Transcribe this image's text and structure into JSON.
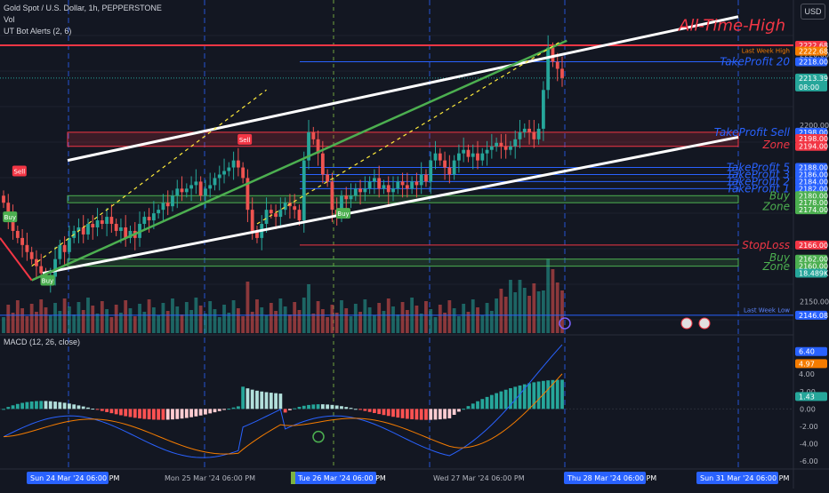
{
  "header": {
    "symbol_line": "Gold Spot / U.S. Dollar, 1h, PEPPERSTONE",
    "vol_label": "Vol",
    "ut_label": "UT Bot Alerts (2, 6)",
    "macd_label": "MACD (12, 26, close)",
    "currency_button": "USD"
  },
  "colors": {
    "bg": "#131722",
    "up": "#26a69a",
    "down": "#ef5350",
    "grid": "#1e222d",
    "blue_line": "#2962ff",
    "red_line": "#f23645",
    "green_zone": "#4caf50",
    "white": "#ffffff"
  },
  "price_axis": {
    "ticks": [
      "2220.00",
      "2200.00",
      "2150.00"
    ],
    "badges": [
      {
        "text": "2222.68",
        "color": "#f23645"
      },
      {
        "text": "2222.68",
        "color": "#f57c00"
      },
      {
        "text": "2218.00",
        "color": "#2962ff"
      },
      {
        "text": "2213.39",
        "color": "#26a69a",
        "sub": "08:00"
      },
      {
        "text": "2198.00",
        "color": "#2962ff"
      },
      {
        "text": "2198.00",
        "color": "#f23645"
      },
      {
        "text": "2194.00",
        "color": "#f23645"
      },
      {
        "text": "2188.00",
        "color": "#2962ff"
      },
      {
        "text": "2186.00",
        "color": "#2962ff"
      },
      {
        "text": "2184.00",
        "color": "#2962ff"
      },
      {
        "text": "2182.00",
        "color": "#2962ff"
      },
      {
        "text": "2180.00",
        "color": "#4caf50"
      },
      {
        "text": "2178.00",
        "color": "#4caf50"
      },
      {
        "text": "2174.00",
        "color": "#4caf50"
      },
      {
        "text": "2166.00",
        "color": "#f23645"
      },
      {
        "text": "2162.00",
        "color": "#4caf50"
      },
      {
        "text": "2160.00",
        "color": "#4caf50"
      },
      {
        "text": "18.489K",
        "color": "#26a69a"
      },
      {
        "text": "2146.08",
        "color": "#2962ff"
      }
    ]
  },
  "macd_axis": {
    "ticks": [
      "2.00",
      "0.00",
      "-2.00",
      "-4.00",
      "-6.00"
    ],
    "badges": [
      {
        "text": "6.40",
        "color": "#2962ff"
      },
      {
        "text": "4.97",
        "color": "#f57c00"
      },
      {
        "text": "4.00",
        "color": "none"
      },
      {
        "text": "1.43",
        "color": "#26a69a"
      }
    ]
  },
  "time_axis": {
    "labels": [
      {
        "text": "Sun 24 Mar '24   06:00 PM",
        "highlight": true
      },
      {
        "text": "Mon 25 Mar '24   06:00 PM",
        "highlight": false
      },
      {
        "text": "Tue 26 Mar '24   06:00 PM",
        "highlight": true
      },
      {
        "text": "Wed 27 Mar '24   06:00 PM",
        "highlight": false
      },
      {
        "text": "Thu 28 Mar '24   06:00 PM",
        "highlight": true
      },
      {
        "text": "Sun 31 Mar '24   06:00 PM",
        "highlight": true
      }
    ]
  },
  "annotations": {
    "ath": "All-Time-High",
    "last_week_high": "Last Week High",
    "last_week_low": "Last Week Low",
    "tp20": "TakeProfit 20",
    "tp_sell": "TakeProfit Sell",
    "zone_sell": "Zone",
    "tp5": "TakeProfit 5",
    "tp3": "TakeProfit 3",
    "tp2": "TakeProfit 2",
    "tp1": "TakeProfit 1",
    "buy1": "Buy",
    "zone1": "Zone",
    "stoploss": "StopLoss",
    "buy2": "Buy",
    "zone2": "Zone"
  },
  "signals": [
    {
      "text": "Sell",
      "kind": "sell"
    },
    {
      "text": "Buy",
      "kind": "buy"
    },
    {
      "text": "Buy",
      "kind": "buy"
    },
    {
      "text": "Sell",
      "kind": "sell"
    },
    {
      "text": "Buy",
      "kind": "buy"
    }
  ],
  "chart_data": [
    {
      "type": "candlestick",
      "title": "Gold Spot / U.S. Dollar, 1h, PEPPERSTONE",
      "ylim": [
        2141,
        2232
      ],
      "series": [
        {
          "name": "Vol",
          "type": "bar"
        },
        {
          "name": "UT Bot Alerts (2, 6)"
        }
      ],
      "levels": [
        {
          "label": "Last Week High",
          "value": 2222.68
        },
        {
          "label": "TakeProfit 20",
          "value": 2218.0
        },
        {
          "label": "TakeProfit Sell",
          "value": 2198.0
        },
        {
          "label": "Zone",
          "value": 2194.0
        },
        {
          "label": "TakeProfit 5",
          "value": 2188.0
        },
        {
          "label": "TakeProfit 3",
          "value": 2186.0
        },
        {
          "label": "TakeProfit 2",
          "value": 2184.0
        },
        {
          "label": "TakeProfit 1",
          "value": 2182.0
        },
        {
          "label": "Buy",
          "value": 2180.0
        },
        {
          "label": "Zone",
          "value": 2178.0
        },
        {
          "label": "StopLoss",
          "value": 2166.0
        },
        {
          "label": "Buy",
          "value": 2162.0
        },
        {
          "label": "Zone",
          "value": 2160.0
        },
        {
          "label": "Last Week Low",
          "value": 2146.08
        }
      ],
      "close": [
        2178,
        2174,
        2170,
        2168,
        2166,
        2164,
        2162,
        2160,
        2158,
        2156,
        2157,
        2162,
        2166,
        2164,
        2168,
        2170,
        2171,
        2169,
        2172,
        2171,
        2173,
        2172,
        2174,
        2172,
        2170,
        2171,
        2168,
        2170,
        2168,
        2172,
        2174,
        2173,
        2175,
        2176,
        2178,
        2177,
        2180,
        2182,
        2181,
        2182,
        2183,
        2184,
        2180,
        2182,
        2183,
        2185,
        2186,
        2187,
        2188,
        2190,
        2188,
        2185,
        2176,
        2170,
        2168,
        2172,
        2176,
        2175,
        2174,
        2176,
        2178,
        2177,
        2176,
        2173,
        2190,
        2198,
        2196,
        2192,
        2186,
        2184,
        2176,
        2174,
        2180,
        2179,
        2180,
        2182,
        2181,
        2182,
        2184,
        2185,
        2182,
        2183,
        2181,
        2182,
        2184,
        2183,
        2182,
        2184,
        2183,
        2186,
        2184,
        2190,
        2192,
        2190,
        2188,
        2186,
        2190,
        2192,
        2193,
        2191,
        2192,
        2190,
        2192,
        2193,
        2194,
        2195,
        2194,
        2193,
        2194,
        2196,
        2198,
        2199,
        2198,
        2196,
        2199,
        2210,
        2222,
        2218,
        2216,
        2213.39
      ]
    },
    {
      "type": "bar",
      "title": "MACD (12, 26, close)",
      "ylim": [
        -6.5,
        8
      ],
      "series": [
        {
          "name": "Histogram",
          "type": "bar"
        },
        {
          "name": "MACD",
          "type": "line",
          "last": 6.4
        },
        {
          "name": "Signal",
          "type": "line",
          "last": 4.97
        }
      ],
      "last_histogram": 1.43
    }
  ]
}
